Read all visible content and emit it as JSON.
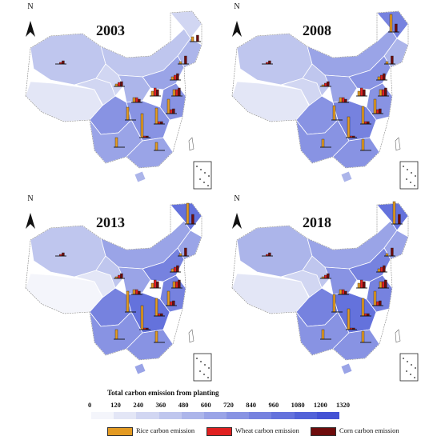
{
  "maps": [
    {
      "year": "2003",
      "north": "N"
    },
    {
      "year": "2008",
      "north": "N"
    },
    {
      "year": "2013",
      "north": "N"
    },
    {
      "year": "2018",
      "north": "N"
    }
  ],
  "legend": {
    "title": "Total carbon emission from planting",
    "scale_ticks": [
      "0",
      "120",
      "240",
      "360",
      "480",
      "600",
      "720",
      "840",
      "960",
      "1080",
      "1200",
      "1320"
    ],
    "scale_colors": [
      "#f4f5fb",
      "#e3e6f6",
      "#d1d6f2",
      "#bfc6ee",
      "#acb5ea",
      "#9aa4e7",
      "#8893e3",
      "#7682df",
      "#6472dc",
      "#5262d8",
      "#4452d4"
    ],
    "items": [
      {
        "label": "Rice carbon emission",
        "color": "#e39a22"
      },
      {
        "label": "Wheat carbon emission",
        "color": "#e02020"
      },
      {
        "label": "Corn carbon emission",
        "color": "#6e0c0c"
      }
    ]
  }
}
